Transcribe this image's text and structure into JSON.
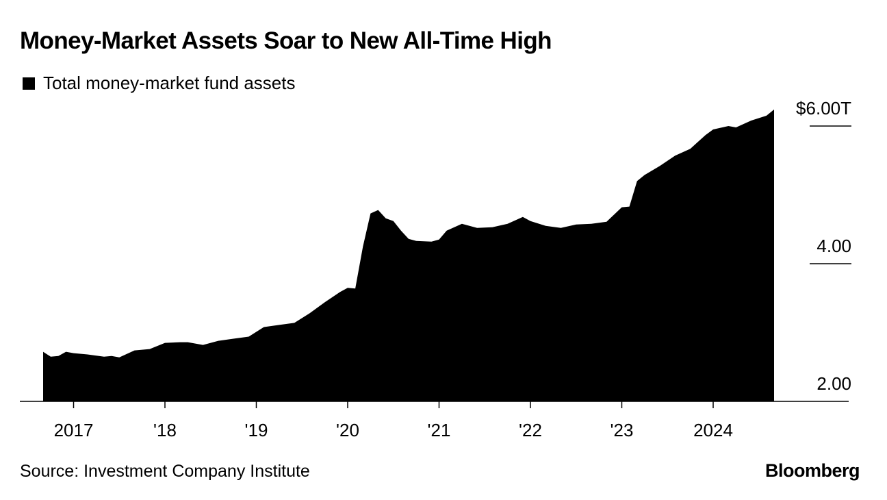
{
  "header": {
    "title": "Money-Market Assets Soar to New All-Time High"
  },
  "legend": {
    "label": "Total money-market fund assets",
    "color": "#000000"
  },
  "footer": {
    "source": "Source: Investment Company Institute",
    "brand": "Bloomberg"
  },
  "chart_data": {
    "type": "area",
    "title": "Money-Market Assets Soar to New All-Time High",
    "series": [
      {
        "name": "Total money-market fund assets",
        "color": "#000000",
        "points": [
          [
            "2016-09",
            2.72
          ],
          [
            "2016-10",
            2.65
          ],
          [
            "2016-11",
            2.66
          ],
          [
            "2016-12",
            2.72
          ],
          [
            "2017-01",
            2.7
          ],
          [
            "2017-03",
            2.68
          ],
          [
            "2017-05",
            2.65
          ],
          [
            "2017-06",
            2.66
          ],
          [
            "2017-07",
            2.64
          ],
          [
            "2017-09",
            2.74
          ],
          [
            "2017-11",
            2.76
          ],
          [
            "2018-01",
            2.85
          ],
          [
            "2018-03",
            2.86
          ],
          [
            "2018-04",
            2.86
          ],
          [
            "2018-06",
            2.82
          ],
          [
            "2018-08",
            2.88
          ],
          [
            "2018-10",
            2.91
          ],
          [
            "2018-12",
            2.94
          ],
          [
            "2019-02",
            3.08
          ],
          [
            "2019-04",
            3.11
          ],
          [
            "2019-06",
            3.14
          ],
          [
            "2019-08",
            3.28
          ],
          [
            "2019-10",
            3.44
          ],
          [
            "2019-12",
            3.59
          ],
          [
            "2020-01",
            3.65
          ],
          [
            "2020-02",
            3.64
          ],
          [
            "2020-03",
            4.25
          ],
          [
            "2020-04",
            4.73
          ],
          [
            "2020-05",
            4.78
          ],
          [
            "2020-06",
            4.66
          ],
          [
            "2020-07",
            4.62
          ],
          [
            "2020-08",
            4.48
          ],
          [
            "2020-09",
            4.36
          ],
          [
            "2020-10",
            4.33
          ],
          [
            "2020-12",
            4.32
          ],
          [
            "2021-01",
            4.35
          ],
          [
            "2021-02",
            4.48
          ],
          [
            "2021-04",
            4.58
          ],
          [
            "2021-06",
            4.52
          ],
          [
            "2021-08",
            4.53
          ],
          [
            "2021-10",
            4.58
          ],
          [
            "2021-12",
            4.68
          ],
          [
            "2022-01",
            4.62
          ],
          [
            "2022-03",
            4.55
          ],
          [
            "2022-05",
            4.52
          ],
          [
            "2022-07",
            4.57
          ],
          [
            "2022-09",
            4.58
          ],
          [
            "2022-11",
            4.61
          ],
          [
            "2023-01",
            4.82
          ],
          [
            "2023-02",
            4.83
          ],
          [
            "2023-03",
            5.2
          ],
          [
            "2023-04",
            5.29
          ],
          [
            "2023-06",
            5.42
          ],
          [
            "2023-08",
            5.57
          ],
          [
            "2023-10",
            5.67
          ],
          [
            "2023-12",
            5.87
          ],
          [
            "2024-01",
            5.95
          ],
          [
            "2024-03",
            6.0
          ],
          [
            "2024-04",
            5.98
          ],
          [
            "2024-06",
            6.08
          ],
          [
            "2024-08",
            6.15
          ],
          [
            "2024-09",
            6.24
          ]
        ]
      }
    ],
    "x_ticks": [
      {
        "date": "2017-01",
        "label": "2017"
      },
      {
        "date": "2018-01",
        "label": "'18"
      },
      {
        "date": "2019-01",
        "label": "'19"
      },
      {
        "date": "2020-01",
        "label": "'20"
      },
      {
        "date": "2021-01",
        "label": "'21"
      },
      {
        "date": "2022-01",
        "label": "'22"
      },
      {
        "date": "2023-01",
        "label": "'23"
      },
      {
        "date": "2024-01",
        "label": "2024"
      }
    ],
    "y_ticks": [
      {
        "value": 2,
        "label": "2.00"
      },
      {
        "value": 4,
        "label": "4.00"
      },
      {
        "value": 6,
        "label": "$6.00T"
      }
    ],
    "xlim": [
      "2016-09",
      "2024-09"
    ],
    "ylim": [
      2,
      6.3
    ],
    "y_axis_side": "right",
    "grid": false,
    "legend_position": "top-left"
  }
}
